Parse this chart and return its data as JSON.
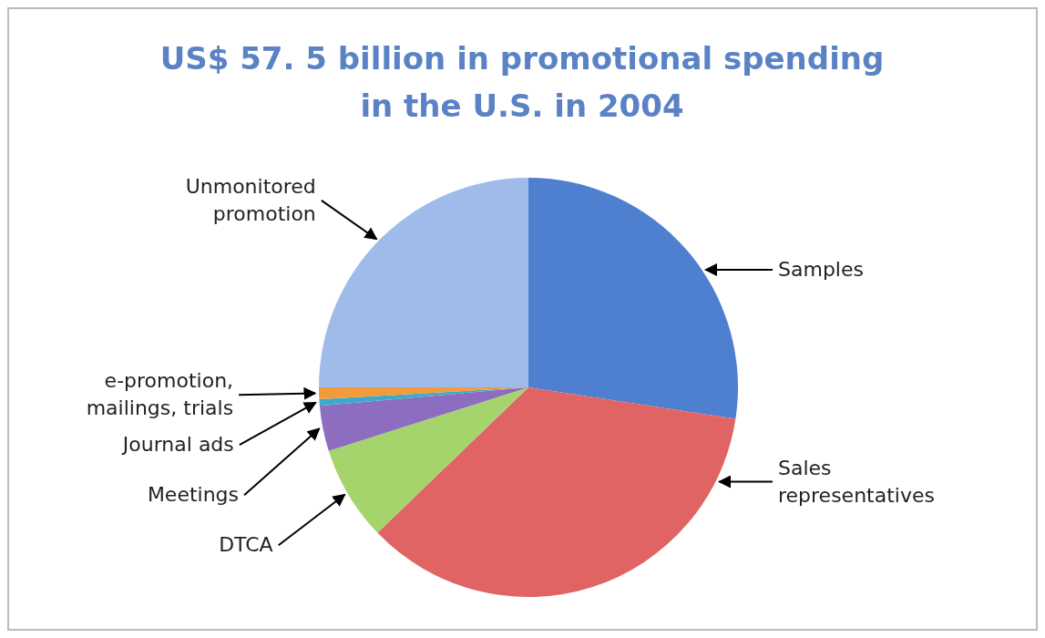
{
  "chart_data": {
    "type": "pie",
    "title": "US$ 57. 5 billion in promotional spending in the U.S. in 2004",
    "categories": [
      "Samples",
      "Sales representatives",
      "DTCA",
      "Meetings",
      "Journal ads",
      "e-promotion, mailings, trials",
      "Unmonitored promotion"
    ],
    "values": [
      27.4,
      35.4,
      7.3,
      3.5,
      0.5,
      0.9,
      25.0
    ],
    "colors": [
      "#4f7fcf",
      "#e06464",
      "#a6d46c",
      "#8d6dbf",
      "#3fa9c9",
      "#f39a3a",
      "#9fbbea"
    ]
  }
}
